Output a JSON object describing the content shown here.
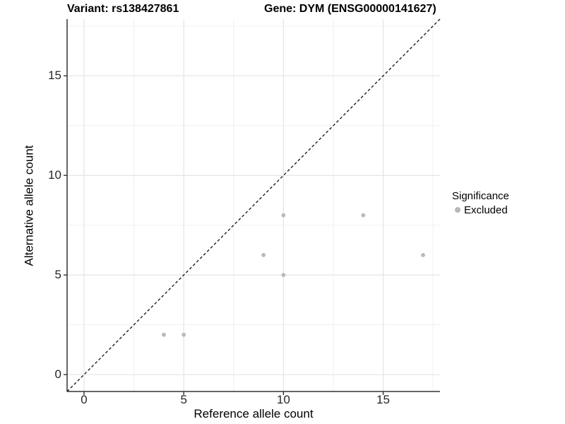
{
  "chart_data": {
    "type": "scatter",
    "title_left": "Variant: rs138427861",
    "title_right": "Gene: DYM (ENSG00000141627)",
    "xlabel": "Reference allele count",
    "ylabel": "Alternative allele count",
    "xlim": [
      -0.85,
      17.85
    ],
    "ylim": [
      -0.85,
      17.85
    ],
    "x_ticks": [
      0,
      5,
      10,
      15
    ],
    "y_ticks": [
      0,
      5,
      10,
      15
    ],
    "minor_ticks": [
      2.5,
      7.5,
      12.5,
      17.5
    ],
    "grid": {
      "major": true,
      "minor": true
    },
    "points": [
      {
        "x": 4,
        "y": 2
      },
      {
        "x": 5,
        "y": 2
      },
      {
        "x": 9,
        "y": 6
      },
      {
        "x": 10,
        "y": 5
      },
      {
        "x": 10,
        "y": 8
      },
      {
        "x": 14,
        "y": 8
      },
      {
        "x": 17,
        "y": 6
      }
    ],
    "identity_line": {
      "style": "dashed",
      "equation": "y = x"
    },
    "legend": {
      "position": "right",
      "title": "Significance",
      "items": [
        {
          "label": "Excluded",
          "color": "#b7b7b7"
        }
      ]
    },
    "colors": {
      "point": "#b9b9b9",
      "grid_major": "#e4e4e4",
      "grid_minor": "#f0f0f0",
      "axis_line": "#333333",
      "identity_line": "#111111",
      "text": "#000000"
    }
  }
}
